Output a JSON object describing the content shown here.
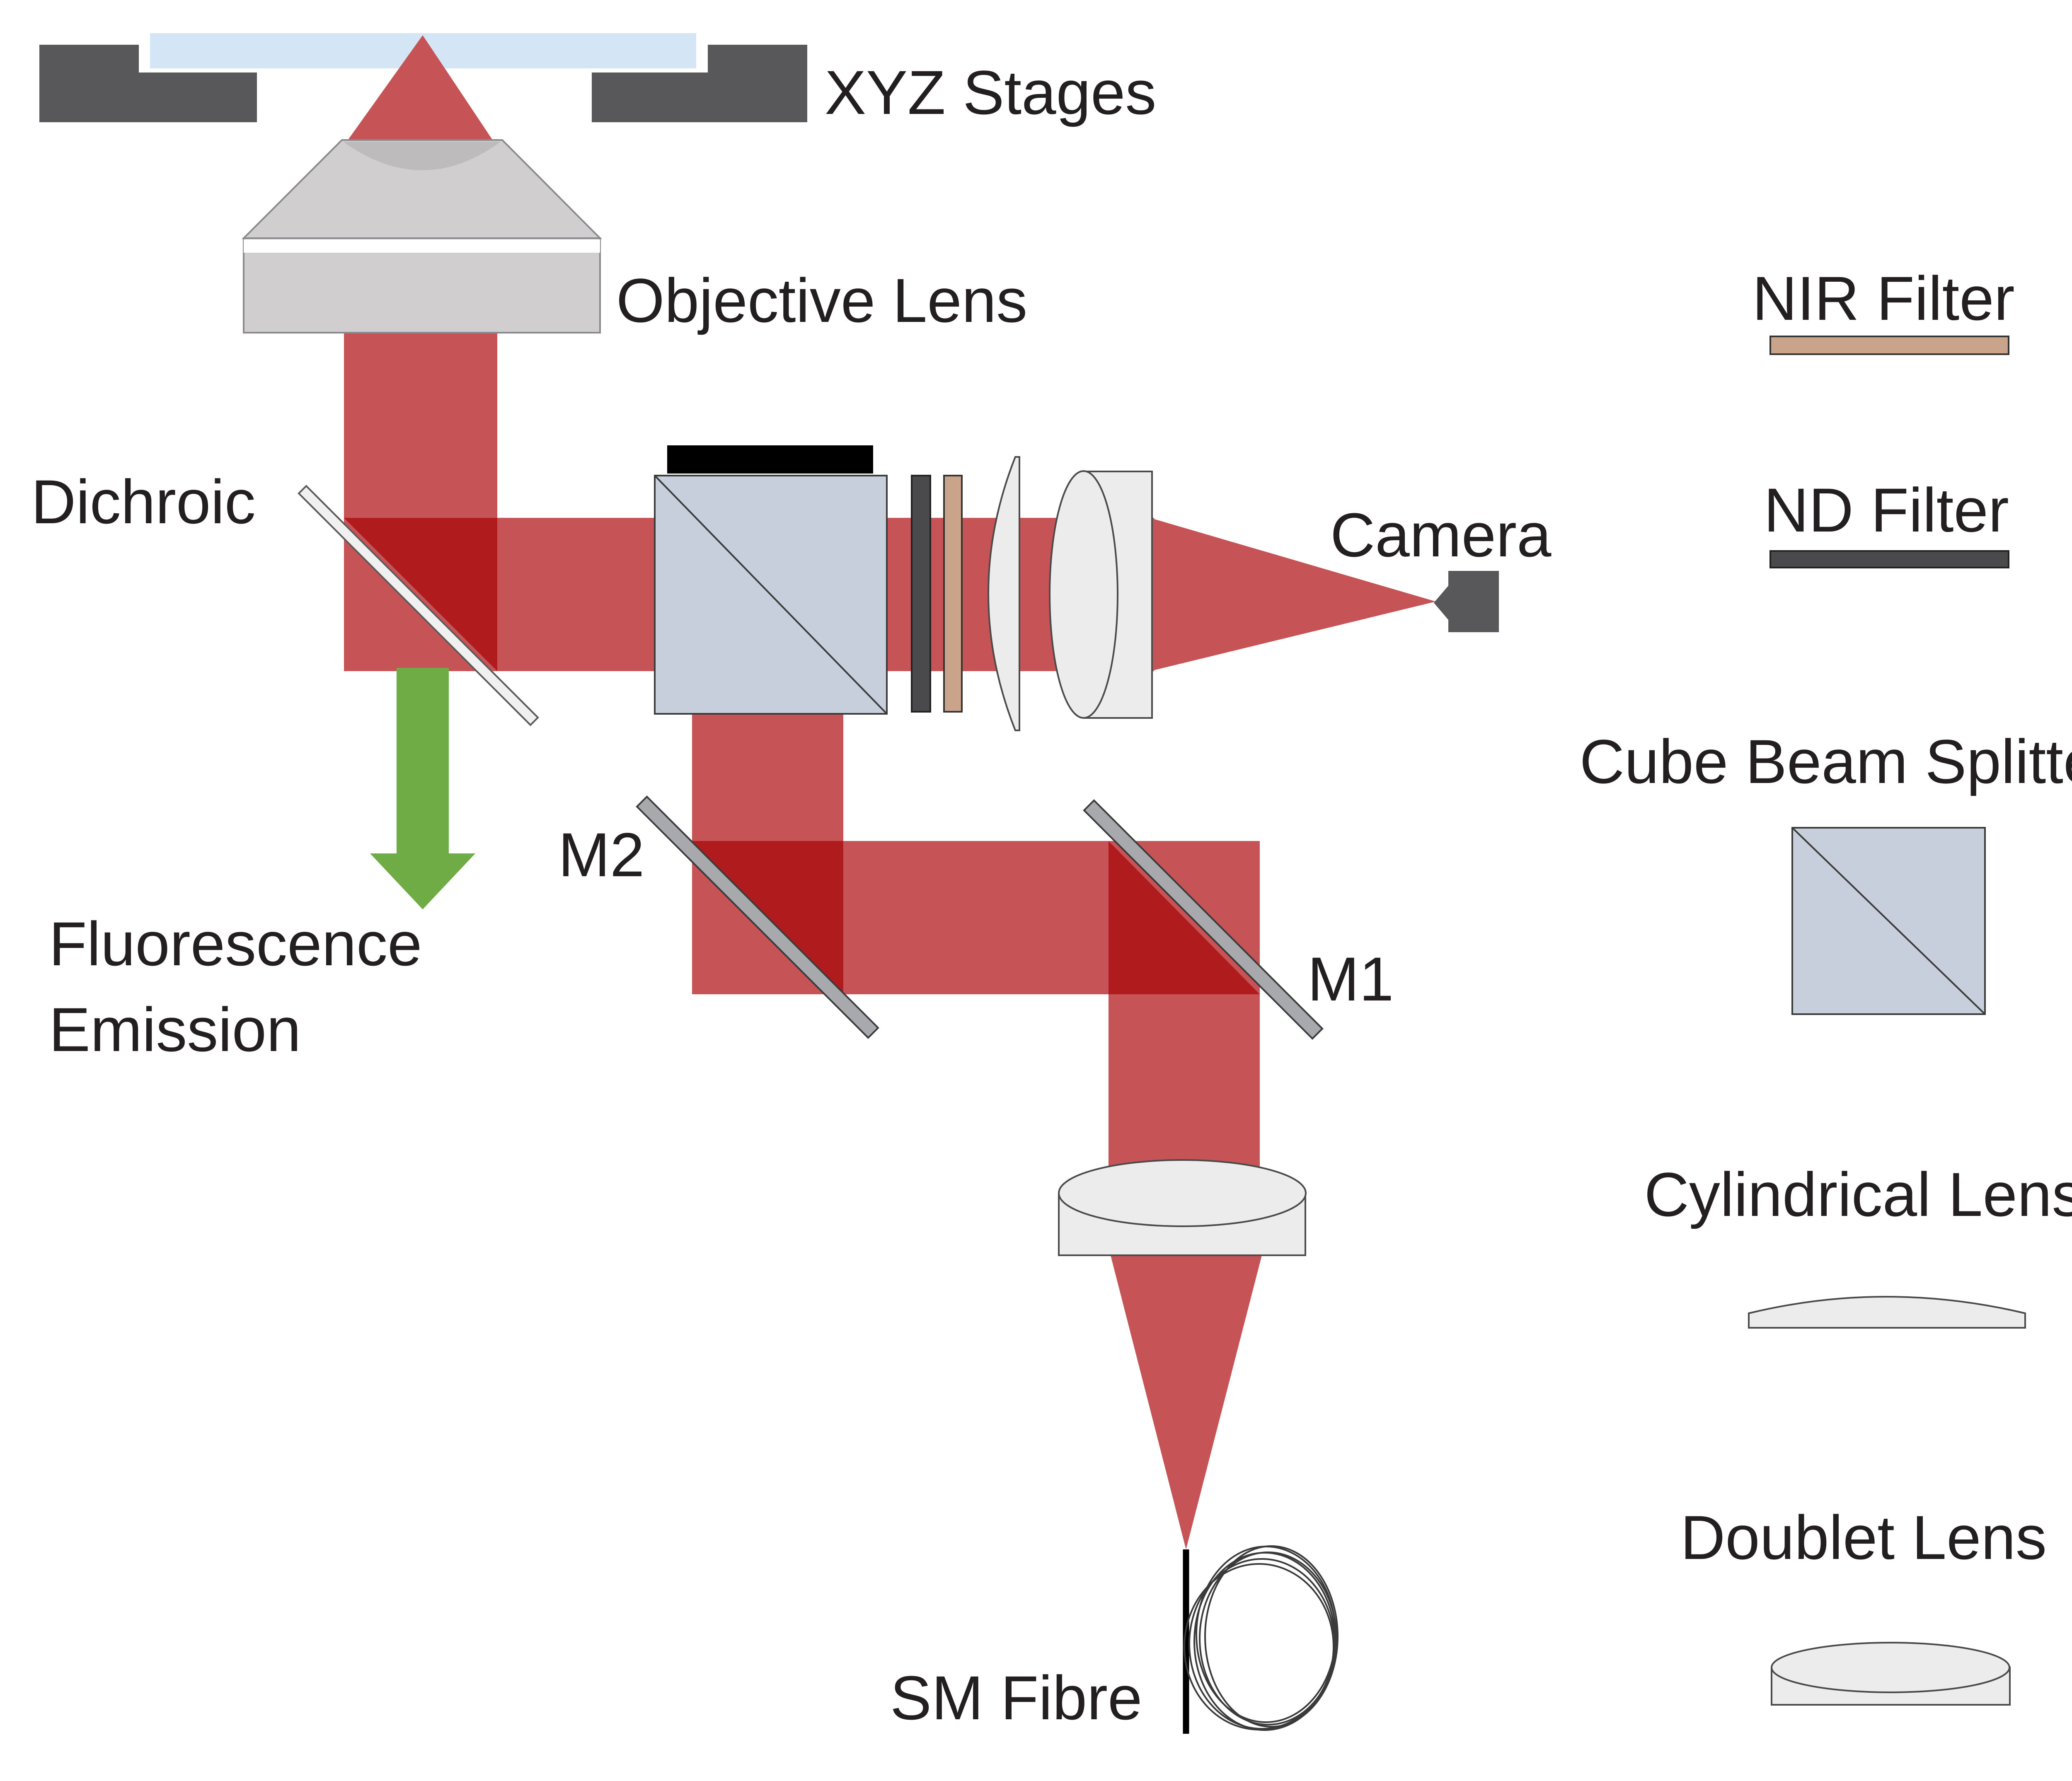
{
  "labels": {
    "xyz_stages": "XYZ Stages",
    "objective_lens": "Objective Lens",
    "dichroic": "Dichroic",
    "camera": "Camera",
    "fluorescence_line1": "Fluorescence",
    "fluorescence_line2": "Emission",
    "m2": "M2",
    "m1": "M1",
    "sm_fibre": "SM Fibre"
  },
  "legend": {
    "nir_filter": "NIR Filter",
    "nd_filter": "ND Filter",
    "cube_beam_splitter": "Cube Beam Splitter",
    "cylindrical_lens": "Cylindrical Lens",
    "doublet_lens": "Doublet Lens"
  },
  "colors": {
    "beam": "#c65355",
    "beam_overlap": "#b01c1e",
    "emission_arrow": "#6fac46",
    "stage": "#58585a",
    "sample_slide": "#d4e6f6",
    "objective": "#d0cecf",
    "beam_splitter": "#c8cfdc",
    "nir_filter": "#c9a48a",
    "nd_filter": "#4a4a4c",
    "lens": "#ececec",
    "mirror": "#a7a9ac",
    "text": "#231f20"
  }
}
